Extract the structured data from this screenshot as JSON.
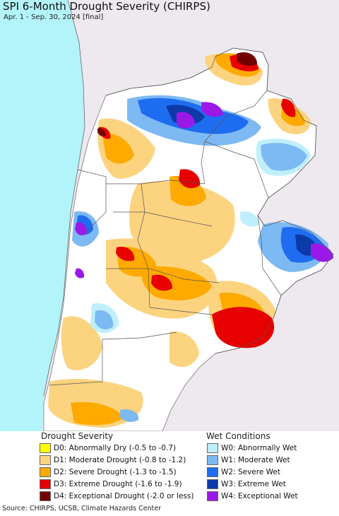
{
  "map": {
    "title": "SPI 6-Month Drought Severity (CHIRPS)",
    "subtitle": "Apr. 1 - Sep. 30, 2024 [final]",
    "colors": {
      "ocean": "#b3f4fb",
      "outside_land": "#ede9ee",
      "no_drought": "#ffffff",
      "border": "#555555"
    }
  },
  "legend": {
    "drought": {
      "heading": "Drought Severity",
      "items": [
        {
          "label": "D0: Abnormally Dry (-0.5 to -0.7)",
          "color": "#ffff00"
        },
        {
          "label": "D1: Moderate Drought (-0.8 to -1.2)",
          "color": "#fcd37f"
        },
        {
          "label": "D2: Severe Drought (-1.3 to -1.5)",
          "color": "#ffaa00"
        },
        {
          "label": "D3: Extreme Drought (-1.6 to -1.9)",
          "color": "#e60000"
        },
        {
          "label": "D4: Exceptional Drought (-2.0 or less)",
          "color": "#730000"
        }
      ]
    },
    "wet": {
      "heading": "Wet Conditions",
      "items": [
        {
          "label": "W0: Abnormally Wet",
          "color": "#bfeffd"
        },
        {
          "label": "W1: Moderate Wet",
          "color": "#7db9f2"
        },
        {
          "label": "W2: Severe Wet",
          "color": "#1e6cf0"
        },
        {
          "label": "W3: Extreme Wet",
          "color": "#0c3aa8"
        },
        {
          "label": "W4: Exceptional Wet",
          "color": "#9b19e6"
        }
      ]
    }
  },
  "footer": {
    "source": "Source: CHIRPS, UCSB, Climate Hazards Center"
  }
}
